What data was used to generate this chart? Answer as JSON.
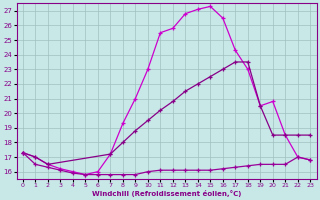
{
  "xlabel": "Windchill (Refroidissement éolien,°C)",
  "xlim": [
    -0.5,
    23.5
  ],
  "ylim": [
    15.5,
    27.5
  ],
  "yticks": [
    16,
    17,
    18,
    19,
    20,
    21,
    22,
    23,
    24,
    25,
    26,
    27
  ],
  "xticks": [
    0,
    1,
    2,
    3,
    4,
    5,
    6,
    7,
    8,
    9,
    10,
    11,
    12,
    13,
    14,
    15,
    16,
    17,
    18,
    19,
    20,
    21,
    22,
    23
  ],
  "background_color": "#c8e8e8",
  "grid_color": "#a0c0c0",
  "line_color1": "#cc00cc",
  "line_color2": "#880088",
  "line_color3": "#990099",
  "line1_x": [
    0,
    1,
    2,
    3,
    4,
    5,
    6,
    7,
    8,
    9,
    10,
    11,
    12,
    13,
    14,
    15,
    16,
    17,
    18,
    19,
    20,
    21,
    22,
    23
  ],
  "line1_y": [
    17.3,
    17.0,
    16.5,
    16.2,
    16.0,
    15.8,
    16.0,
    17.2,
    19.3,
    21.0,
    23.0,
    25.5,
    25.8,
    26.8,
    27.1,
    27.3,
    26.5,
    24.3,
    23.0,
    20.5,
    20.8,
    18.5,
    17.0,
    16.8
  ],
  "line2_x": [
    0,
    1,
    2,
    7,
    8,
    9,
    10,
    11,
    12,
    13,
    14,
    15,
    16,
    17,
    18,
    19,
    20,
    21,
    22,
    23
  ],
  "line2_y": [
    17.3,
    17.0,
    16.5,
    17.2,
    18.0,
    18.8,
    19.5,
    20.2,
    20.8,
    21.5,
    22.0,
    22.5,
    23.0,
    23.5,
    23.5,
    20.5,
    18.5,
    18.5,
    18.5,
    18.5
  ],
  "line3_x": [
    0,
    1,
    2,
    3,
    4,
    5,
    6,
    7,
    8,
    9,
    10,
    11,
    12,
    13,
    14,
    15,
    16,
    17,
    18,
    19,
    20,
    21,
    22,
    23
  ],
  "line3_y": [
    17.3,
    16.5,
    16.3,
    16.1,
    15.9,
    15.8,
    15.8,
    15.8,
    15.8,
    15.8,
    16.0,
    16.1,
    16.1,
    16.1,
    16.1,
    16.1,
    16.2,
    16.3,
    16.4,
    16.5,
    16.5,
    16.5,
    17.0,
    16.8
  ]
}
